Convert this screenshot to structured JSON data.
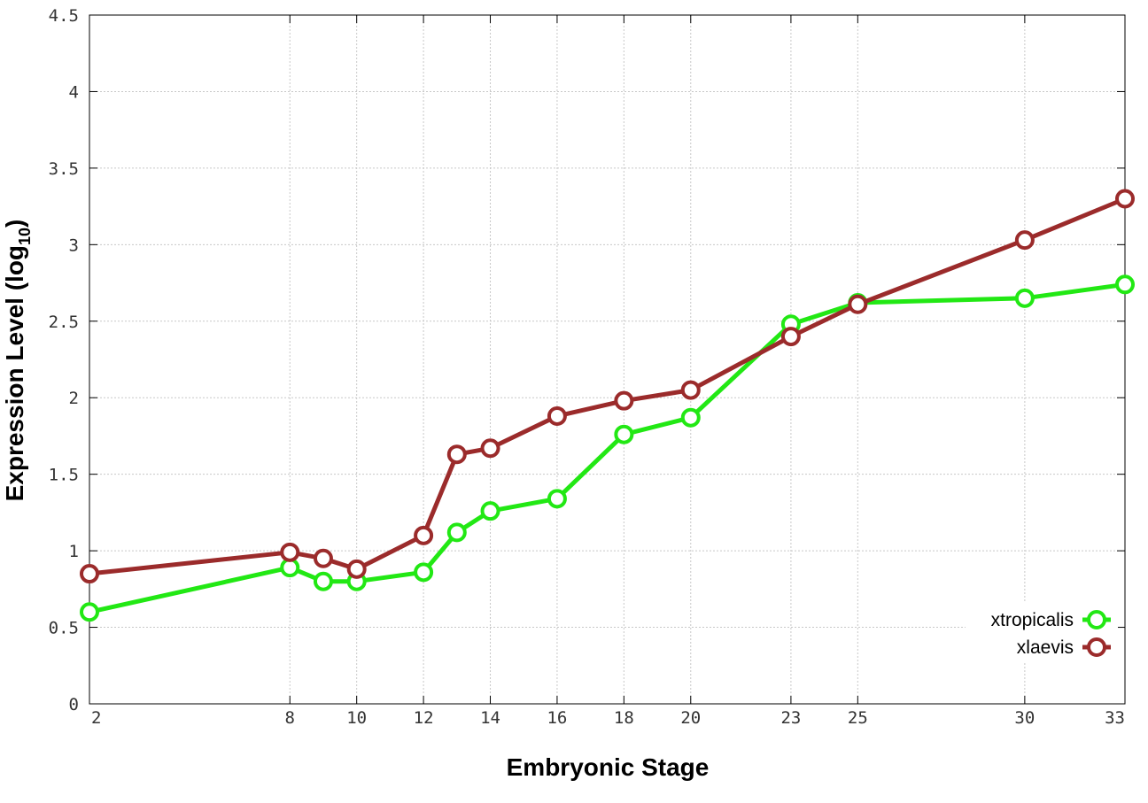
{
  "chart_data": {
    "type": "line",
    "title": "",
    "xlabel": "Embryonic Stage",
    "ylabel_main": "Expression Level (log",
    "ylabel_sub": "10",
    "ylabel_close": ")",
    "xlim": [
      2,
      33
    ],
    "ylim": [
      0,
      4.5
    ],
    "x_ticks": [
      2,
      8,
      10,
      12,
      14,
      16,
      18,
      20,
      23,
      25,
      30,
      33
    ],
    "x_tick_labels": [
      "2",
      "8",
      "10",
      "12",
      "14",
      "16",
      "18",
      "20",
      "23",
      "25",
      "30",
      "33"
    ],
    "y_ticks": [
      0,
      0.5,
      1,
      1.5,
      2,
      2.5,
      3,
      3.5,
      4,
      4.5
    ],
    "y_tick_labels": [
      "0",
      "0.5",
      "1",
      "1.5",
      "2",
      "2.5",
      "3",
      "3.5",
      "4",
      "4.5"
    ],
    "grid": true,
    "legend_position": "bottom-right",
    "series": [
      {
        "name": "xtropicalis",
        "color": "#22e814",
        "x": [
          2,
          8,
          9,
          10,
          12,
          13,
          14,
          16,
          18,
          20,
          23,
          25,
          30,
          33
        ],
        "y": [
          0.6,
          0.89,
          0.8,
          0.8,
          0.86,
          1.12,
          1.26,
          1.34,
          1.76,
          1.87,
          2.48,
          2.62,
          2.65,
          2.74
        ]
      },
      {
        "name": "xlaevis",
        "color": "#9b2b2b",
        "x": [
          2,
          8,
          9,
          10,
          12,
          13,
          14,
          16,
          18,
          20,
          23,
          25,
          30,
          33
        ],
        "y": [
          0.85,
          0.99,
          0.95,
          0.88,
          1.1,
          1.63,
          1.67,
          1.88,
          1.98,
          2.05,
          2.4,
          2.61,
          3.03,
          3.3
        ]
      }
    ]
  }
}
